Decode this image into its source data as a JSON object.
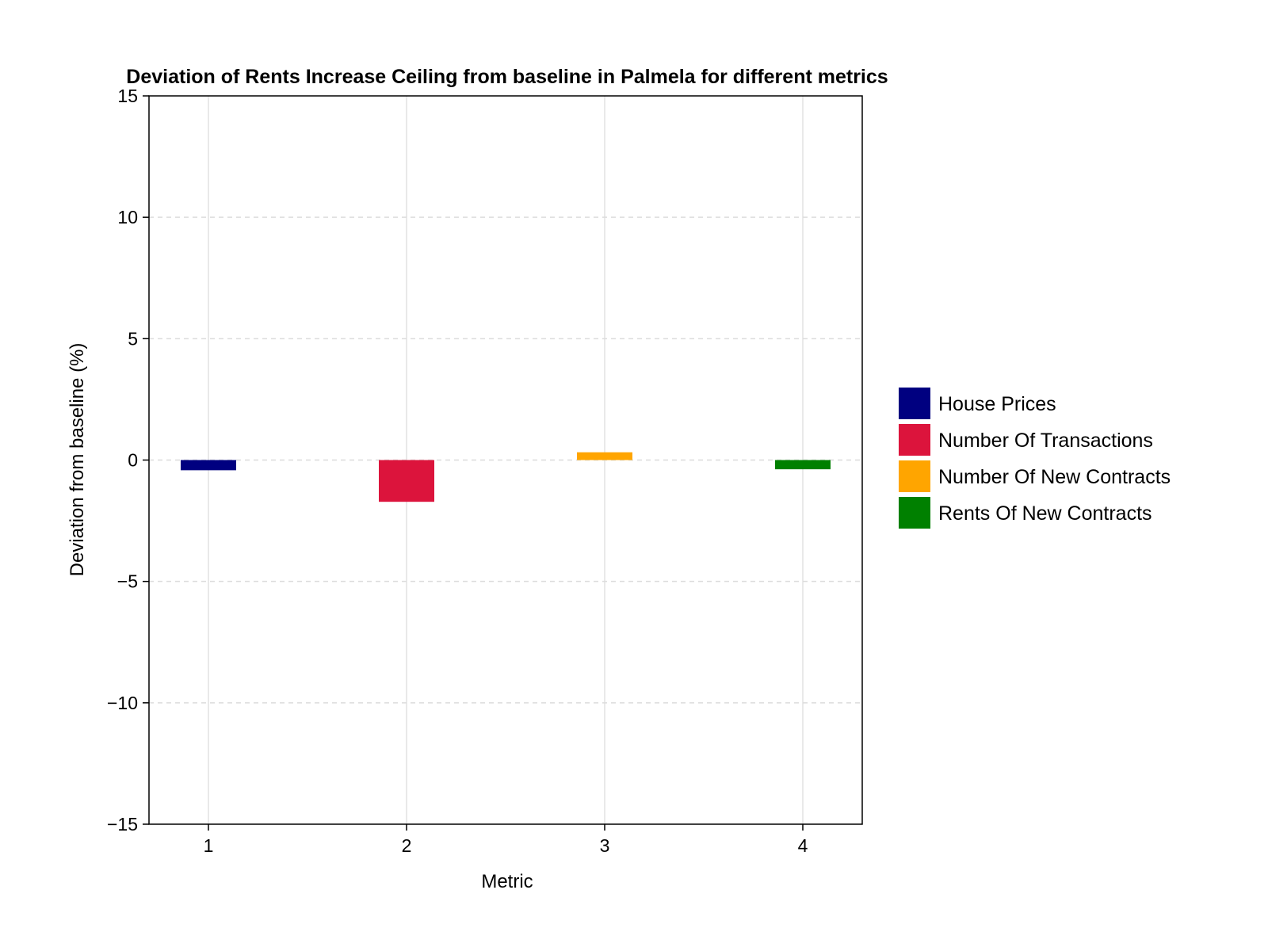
{
  "chart_data": {
    "type": "bar",
    "title": "Deviation of Rents Increase Ceiling from baseline in Palmela for different metrics",
    "xlabel": "Metric",
    "ylabel": "Deviation from baseline (%)",
    "x": [
      1,
      2,
      3,
      4
    ],
    "x_tick_labels": [
      "1",
      "2",
      "3",
      "4"
    ],
    "ylim": [
      -15,
      15
    ],
    "y_ticks": [
      -15,
      -10,
      -5,
      0,
      5,
      10,
      15
    ],
    "y_tick_labels": [
      "−15",
      "−10",
      "−5",
      "0",
      "5",
      "10",
      "15"
    ],
    "grid": true,
    "legend_position": "right",
    "series": [
      {
        "name": "House Prices",
        "x": 1,
        "value": -0.42,
        "color": "#000080"
      },
      {
        "name": "Number Of Transactions",
        "x": 2,
        "value": -1.72,
        "color": "#DC143C"
      },
      {
        "name": "Number Of New Contracts",
        "x": 3,
        "value": 0.32,
        "color": "#FFA500"
      },
      {
        "name": "Rents Of New Contracts",
        "x": 4,
        "value": -0.38,
        "color": "#008000"
      }
    ]
  }
}
